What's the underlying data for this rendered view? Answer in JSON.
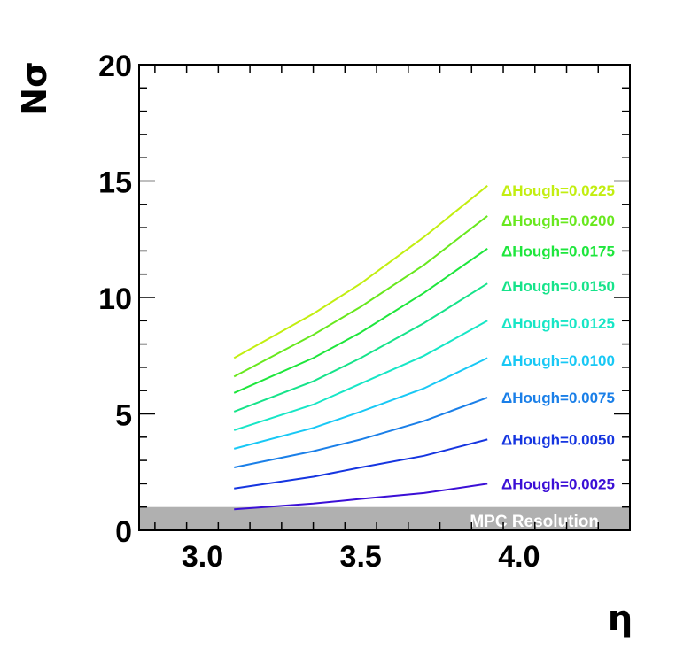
{
  "chart_data": {
    "type": "line",
    "xlabel": "η",
    "ylabel": "Nσ",
    "xlim": [
      2.8,
      4.35
    ],
    "ylim": [
      0,
      20
    ],
    "x_ticks": [
      "3.0",
      "3.5",
      "4.0"
    ],
    "y_ticks": [
      "0",
      "5",
      "10",
      "15",
      "20"
    ],
    "x": [
      3.1,
      3.35,
      3.5,
      3.7,
      3.9
    ],
    "series": [
      {
        "name": "ΔHough=0.0025",
        "color": "#3b0fd6",
        "values": [
          0.9,
          1.15,
          1.35,
          1.6,
          2.0
        ]
      },
      {
        "name": "ΔHough=0.0050",
        "color": "#1535e0",
        "values": [
          1.8,
          2.3,
          2.7,
          3.2,
          3.9
        ]
      },
      {
        "name": "ΔHough=0.0075",
        "color": "#1a7fe8",
        "values": [
          2.7,
          3.4,
          3.9,
          4.7,
          5.7
        ]
      },
      {
        "name": "ΔHough=0.0100",
        "color": "#18c8f5",
        "values": [
          3.5,
          4.4,
          5.1,
          6.1,
          7.4
        ]
      },
      {
        "name": "ΔHough=0.0125",
        "color": "#17e6c6",
        "values": [
          4.3,
          5.4,
          6.3,
          7.5,
          9.0
        ]
      },
      {
        "name": "ΔHough=0.0150",
        "color": "#16e38a",
        "values": [
          5.1,
          6.4,
          7.4,
          8.9,
          10.6
        ]
      },
      {
        "name": "ΔHough=0.0175",
        "color": "#1ee63c",
        "values": [
          5.9,
          7.4,
          8.5,
          10.2,
          12.1
        ]
      },
      {
        "name": "ΔHough=0.0200",
        "color": "#68e81e",
        "values": [
          6.6,
          8.4,
          9.6,
          11.4,
          13.5
        ]
      },
      {
        "name": "ΔHough=0.0225",
        "color": "#c2ee10",
        "values": [
          7.4,
          9.3,
          10.6,
          12.6,
          14.8
        ]
      }
    ],
    "label_y": [
      2.0,
      3.9,
      5.7,
      7.3,
      8.9,
      10.5,
      12.0,
      13.3,
      14.6
    ],
    "band": {
      "label": "MPC Resolution",
      "from": 0,
      "to": 1,
      "color": "#b0b0b0"
    },
    "grid": false,
    "legend": "inline-right"
  }
}
